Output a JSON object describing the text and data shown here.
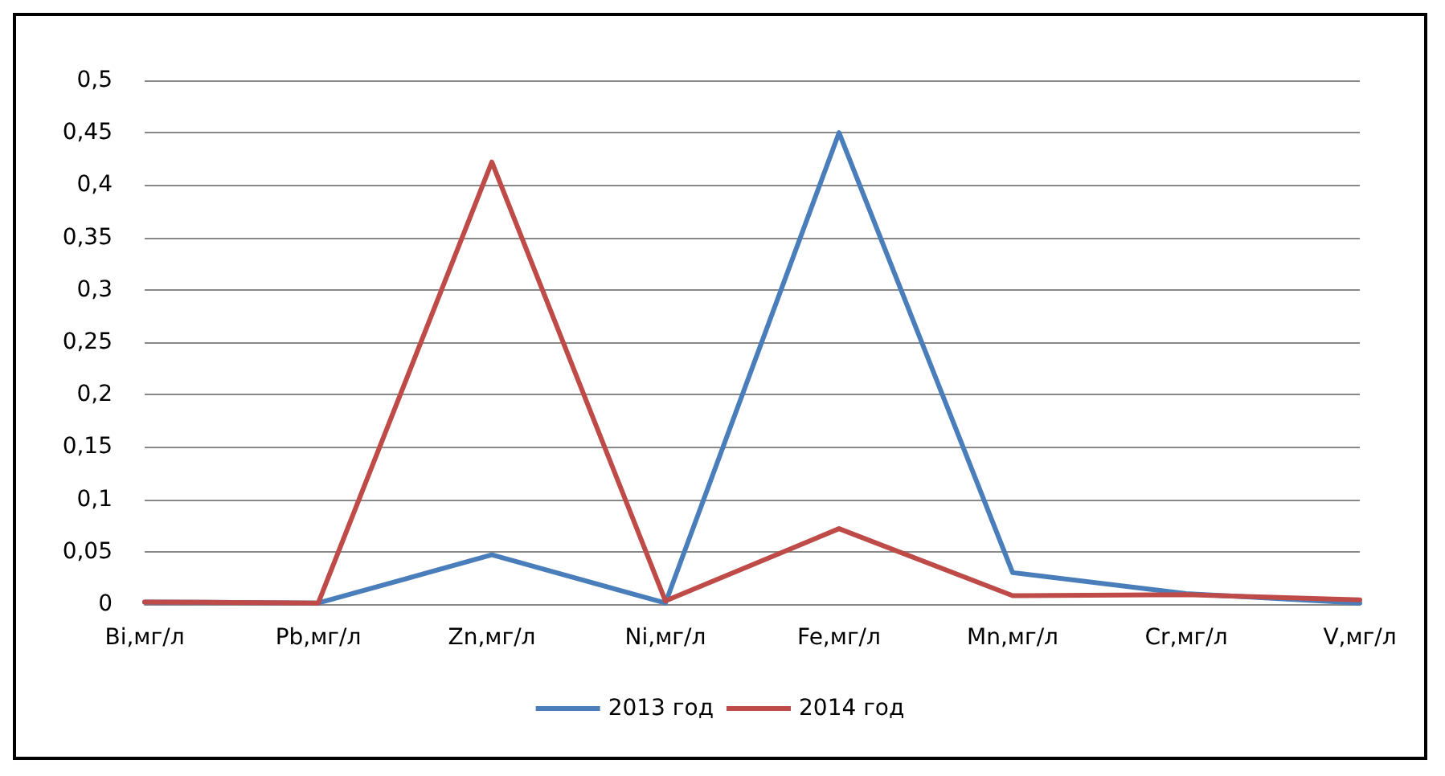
{
  "chart_data": {
    "type": "line",
    "categories": [
      "Bi,мг/л",
      "Pb,мг/л",
      "Zn,мг/л",
      "Ni,мг/л",
      "Fe,мг/л",
      "Mn,мг/л",
      "Cr,мг/л",
      "V,мг/л"
    ],
    "series": [
      {
        "name": "2013 год",
        "color": "#4a7ebb",
        "values": [
          0.002,
          0.001,
          0.047,
          0.001,
          0.45,
          0.03,
          0.01,
          0.001
        ]
      },
      {
        "name": "2014 год",
        "color": "#be4b48",
        "values": [
          0.002,
          0.001,
          0.422,
          0.003,
          0.072,
          0.008,
          0.009,
          0.004
        ]
      }
    ],
    "ylim": [
      0,
      0.5
    ],
    "yticks": [
      0,
      {
        "value": 0.05,
        "label": "0,05"
      },
      {
        "value": 0.1,
        "label": "0,1"
      },
      {
        "value": 0.15,
        "label": "0,15"
      },
      {
        "value": 0.2,
        "label": "0,2"
      },
      {
        "value": 0.25,
        "label": "0,25"
      },
      {
        "value": 0.3,
        "label": "0,3"
      },
      {
        "value": 0.35,
        "label": "0,35"
      },
      {
        "value": 0.4,
        "label": "0,4"
      },
      {
        "value": 0.45,
        "label": "0,45"
      },
      {
        "value": 0.5,
        "label": "0,5"
      }
    ],
    "grid": "y",
    "legend": "bottom",
    "marker": "none",
    "line_style": "solid"
  }
}
